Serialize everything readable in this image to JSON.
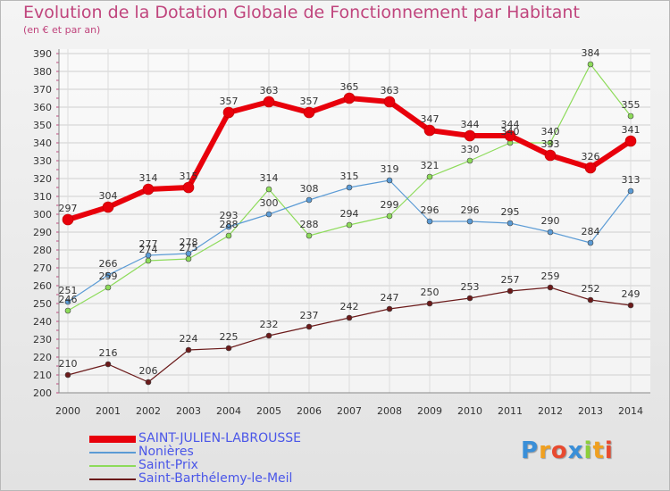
{
  "header": {
    "title": "Evolution de la Dotation Globale de Fonctionnement par Habitant",
    "subtitle": "(en € et par an)"
  },
  "logo": {
    "text": "Proxiti"
  },
  "chart_data": {
    "type": "line",
    "title": "Evolution de la Dotation Globale de Fonctionnement par Habitant",
    "subtitle": "(en € et par an)",
    "xlabel": "",
    "ylabel": "",
    "x": [
      "2000",
      "2001",
      "2002",
      "2003",
      "2004",
      "2005",
      "2006",
      "2007",
      "2008",
      "2009",
      "2010",
      "2011",
      "2012",
      "2013",
      "2014"
    ],
    "ylim": [
      200,
      390
    ],
    "yticks": [
      200,
      210,
      220,
      230,
      240,
      250,
      260,
      270,
      280,
      290,
      300,
      310,
      320,
      330,
      340,
      350,
      360,
      370,
      380,
      390
    ],
    "grid": true,
    "legend_position": "bottom-left",
    "series": [
      {
        "name": "SAINT-JULIEN-LABROUSSE",
        "color": "#e8000b",
        "values": [
          297,
          304,
          314,
          315,
          357,
          363,
          357,
          365,
          363,
          347,
          344,
          344,
          333,
          326,
          341
        ]
      },
      {
        "name": "Nonières",
        "color": "#5b9bd5",
        "values": [
          251,
          266,
          277,
          278,
          293,
          300,
          308,
          315,
          319,
          296,
          296,
          295,
          290,
          284,
          313
        ]
      },
      {
        "name": "Saint-Prix",
        "color": "#8ddb5a",
        "values": [
          246,
          259,
          274,
          275,
          288,
          314,
          288,
          294,
          299,
          321,
          330,
          340,
          340,
          384,
          355
        ]
      },
      {
        "name": "Saint-Barthélemy-le-Meil",
        "color": "#6b1a1a",
        "values": [
          210,
          216,
          206,
          224,
          225,
          232,
          237,
          242,
          247,
          250,
          253,
          257,
          259,
          252,
          249
        ]
      }
    ]
  }
}
